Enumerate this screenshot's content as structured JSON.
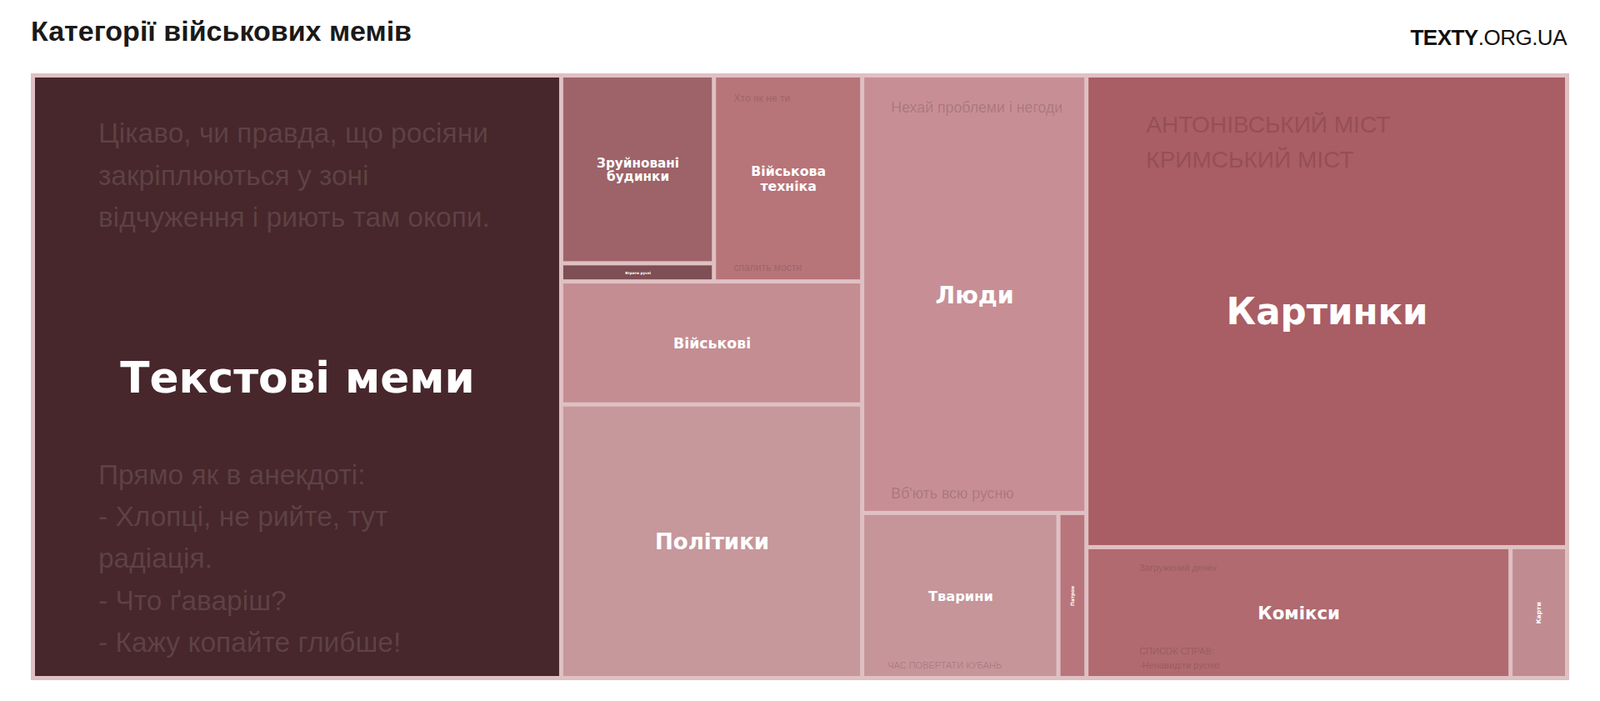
{
  "chart_data": {
    "type": "treemap",
    "title": "Категорії військових мемів",
    "source": "TEXTY.ORG.UA",
    "categories": [
      "Текстові меми",
      "Зруйновані будинки",
      "Втрати русні",
      "Військова техніка",
      "Військові",
      "Політики",
      "Люди",
      "Тварини",
      "Патрон",
      "Картинки",
      "Комікси",
      "Карти"
    ],
    "values": [
      34.4,
      3.1,
      0.3,
      3.3,
      4.0,
      8.9,
      10.6,
      3.5,
      0.5,
      24.5,
      6.0,
      0.8
    ],
    "colors": [
      "#47272b",
      "#9d6368",
      "#7e4f54",
      "#b77479",
      "#c48d92",
      "#c6979b",
      "#c78f95",
      "#c59599",
      "#b8767c",
      "#a95d64",
      "#b06a70",
      "#c08c91"
    ],
    "image_text": [
      {
        "top": [
          "Цікаво, чи правда, що росіяни",
          "закріплюються у зоні",
          "відчуження і риють там окопи."
        ],
        "bottom": [
          "Прямо як в анекдоті:",
          "- Хлопці, не рийте, тут",
          "радіація.",
          "- Что ґаваріш?",
          "- Кажу копайте глибше!"
        ]
      },
      null,
      null,
      {
        "top": [
          "Хто як не ти"
        ],
        "bottom": [
          "спалить мости"
        ]
      },
      null,
      null,
      {
        "top": [
          "Нехай проблеми і негоди"
        ],
        "bottom": [
          "Вб'ють всю русню"
        ]
      },
      {
        "bottom": [
          "ЧАС ПОВЕРТАТИ КУБАНЬ"
        ]
      },
      null,
      {
        "top": [
          "АНТОНІВСЬКИЙ МІСТ",
          "КРИМСЬКИЙ МІСТ"
        ]
      },
      {
        "top": [
          "Загружений денёк"
        ],
        "bottom": [
          "СПИСОК СПРАВ:",
          "-Ненавидіти русню"
        ]
      },
      null
    ]
  }
}
